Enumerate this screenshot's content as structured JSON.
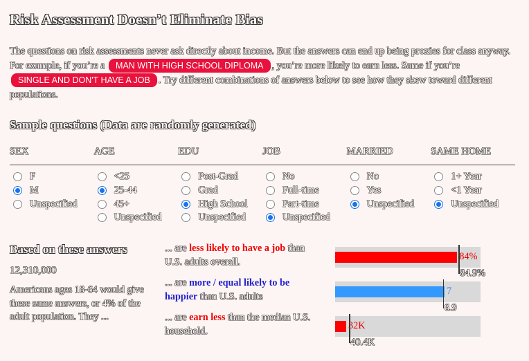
{
  "title": "Risk Assessment Doesn’t Eliminate Bias",
  "intro": {
    "p1": "The questions on risk assessments never ask directly about income. But the answers can end up being proxies for class anyway. For example, if you’re a",
    "pill1": "MAN WITH HIGH SCHOOL DIPLOMA",
    "p2": ", you’re more likely to earn less. Same if you’re",
    "pill2": "SINGLE AND DON'T HAVE A JOB",
    "p3": ". Try different combinations of answers below to see how they skew toward different populations."
  },
  "sample_title": "Sample questions (Data are randomly generated)",
  "questions": [
    {
      "header": "SEX",
      "options": [
        {
          "label": "F",
          "checked": false
        },
        {
          "label": "M",
          "checked": true
        },
        {
          "label": "Unspecified",
          "checked": false
        }
      ]
    },
    {
      "header": "AGE",
      "options": [
        {
          "label": "<25",
          "checked": false
        },
        {
          "label": "25-44",
          "checked": true
        },
        {
          "label": "45+",
          "checked": false
        },
        {
          "label": "Unspecified",
          "checked": false
        }
      ]
    },
    {
      "header": "EDU",
      "options": [
        {
          "label": "Post-Grad",
          "checked": false
        },
        {
          "label": "Grad",
          "checked": false
        },
        {
          "label": "High School",
          "checked": true
        },
        {
          "label": "Unspecified",
          "checked": false
        }
      ]
    },
    {
      "header": "JOB",
      "options": [
        {
          "label": "No",
          "checked": false
        },
        {
          "label": "Full-time",
          "checked": false
        },
        {
          "label": "Part-time",
          "checked": false
        },
        {
          "label": "Unspecified",
          "checked": true
        }
      ]
    },
    {
      "header": "MARRIED",
      "options": [
        {
          "label": "No",
          "checked": false
        },
        {
          "label": "Yes",
          "checked": false
        },
        {
          "label": "Unspecified",
          "checked": true
        }
      ]
    },
    {
      "header": "SAME HOME",
      "options": [
        {
          "label": "1+ Year",
          "checked": false
        },
        {
          "label": "<1 Year",
          "checked": false
        },
        {
          "label": "Unspecified",
          "checked": true
        }
      ]
    }
  ],
  "results": {
    "title": "Based on these answers",
    "count": "12,310,000",
    "description": "Americans ages 18-64 would give these same answers, or 4% of the adult population. They ...",
    "stats": [
      {
        "prefix": "... are ",
        "highlight": "less likely to have a job",
        "highlight_color": "red",
        "suffix": " than U.S. adults overall.",
        "value_label": "84%",
        "value": 84,
        "ref_label": "84.9%",
        "ref": 84.9,
        "max": 100,
        "bar_color": "#ff0000",
        "value_color": "#ee0000"
      },
      {
        "prefix": "... are ",
        "highlight": "more / equal likely to be happier",
        "highlight_color": "blue",
        "suffix": " than U.S. adults",
        "value_label": "7",
        "value": 7,
        "ref_label": "6.9",
        "ref": 6.9,
        "max": 9.3,
        "bar_color": "#3399ff",
        "value_color": "#3a87e0"
      },
      {
        "prefix": "... are ",
        "highlight": "earn less",
        "highlight_color": "red",
        "suffix": " than the median U.S. household.",
        "value_label": "32K",
        "value": 32,
        "ref_label": "40.4K",
        "ref": 40.4,
        "max": 420,
        "bar_color": "#ff0000",
        "value_color": "#ee0000"
      }
    ]
  }
}
